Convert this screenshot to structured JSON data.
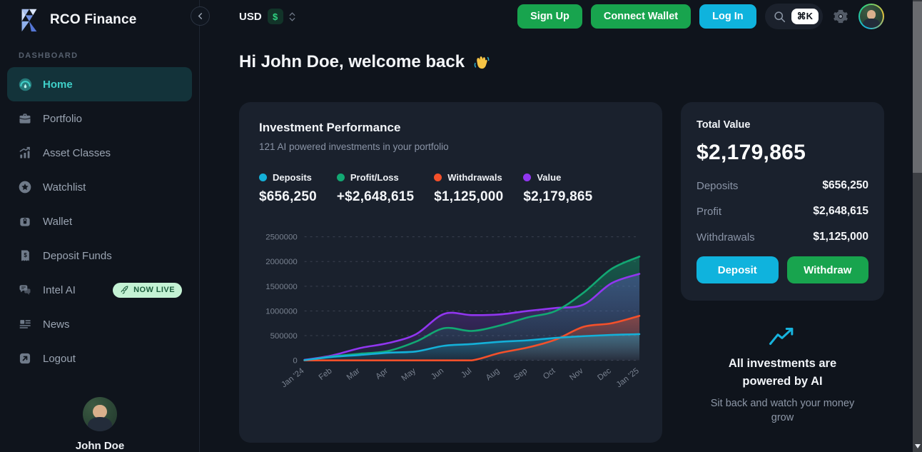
{
  "app": {
    "brand": "RCO Finance"
  },
  "topbar": {
    "currency": {
      "code": "USD",
      "symbol": "$"
    },
    "buttons": {
      "sign_up": "Sign Up",
      "connect_wallet": "Connect Wallet",
      "log_in": "Log In"
    },
    "search_shortcut": "⌘K"
  },
  "sidebar": {
    "section_label": "DASHBOARD",
    "items": [
      {
        "label": "Home",
        "icon": "gauge-icon",
        "active": true
      },
      {
        "label": "Portfolio",
        "icon": "briefcase-icon",
        "active": false
      },
      {
        "label": "Asset Classes",
        "icon": "bar-chart-icon",
        "active": false
      },
      {
        "label": "Watchlist",
        "icon": "star-icon",
        "active": false
      },
      {
        "label": "Wallet",
        "icon": "lock-icon",
        "active": false
      },
      {
        "label": "Deposit Funds",
        "icon": "receipt-dollar-icon",
        "active": false
      },
      {
        "label": "Intel AI",
        "icon": "chat-bubbles-icon",
        "active": false,
        "badge": "NOW LIVE",
        "badge_icon": "rocket-icon"
      },
      {
        "label": "News",
        "icon": "newspaper-icon",
        "active": false
      },
      {
        "label": "Logout",
        "icon": "logout-arrow-icon",
        "active": false
      }
    ],
    "user": {
      "name": "John Doe"
    }
  },
  "main": {
    "greeting": "Hi John Doe, welcome back",
    "performance_card": {
      "title": "Investment Performance",
      "subtitle": "121 AI powered investments in your portfolio",
      "legend": [
        {
          "label": "Deposits",
          "value": "$656,250",
          "color": "#14b0d8"
        },
        {
          "label": "Profit/Loss",
          "value": "+$2,648,615",
          "color": "#12a873"
        },
        {
          "label": "Withdrawals",
          "value": "$1,125,000",
          "color": "#f4502a"
        },
        {
          "label": "Value",
          "value": "$2,179,865",
          "color": "#9136f0"
        }
      ]
    },
    "total_card": {
      "title": "Total Value",
      "total": "$2,179,865",
      "rows": [
        {
          "label": "Deposits",
          "value": "$656,250"
        },
        {
          "label": "Profit",
          "value": "$2,648,615"
        },
        {
          "label": "Withdrawals",
          "value": "$1,125,000"
        }
      ],
      "deposit_button": "Deposit",
      "withdraw_button": "Withdraw"
    },
    "ai_note": {
      "title": "All investments are powered by AI",
      "subtitle": "Sit back and watch your money grow"
    }
  },
  "colors": {
    "accent_teal": "#3fd0c9",
    "button_green": "#18a44e",
    "button_cyan": "#0fb3dd",
    "badge_live_bg": "#c4f2d4",
    "badge_live_text": "#1b5e3c",
    "card_bg": "#1a212d",
    "page_bg": "#0f141c"
  },
  "chart_data": {
    "type": "area",
    "title": "Investment Performance",
    "x": [
      "Jan '24",
      "Feb",
      "Mar",
      "Apr",
      "May",
      "Jun",
      "Jul",
      "Aug",
      "Sep",
      "Oct",
      "Nov",
      "Dec",
      "Jan '25"
    ],
    "series": [
      {
        "name": "Deposits",
        "color": "#14b0d8",
        "values": [
          5000,
          70000,
          110000,
          155000,
          180000,
          295000,
          330000,
          375000,
          405000,
          455000,
          490000,
          515000,
          530000
        ]
      },
      {
        "name": "Profit/Loss",
        "color": "#12a873",
        "values": [
          0,
          80000,
          135000,
          190000,
          380000,
          650000,
          595000,
          705000,
          870000,
          1000000,
          1370000,
          1850000,
          2100000
        ]
      },
      {
        "name": "Withdrawals",
        "color": "#f4502a",
        "values": [
          0,
          0,
          0,
          0,
          0,
          0,
          0,
          150000,
          260000,
          420000,
          680000,
          750000,
          900000
        ]
      },
      {
        "name": "Value",
        "color": "#9136f0",
        "values": [
          10000,
          100000,
          250000,
          350000,
          530000,
          940000,
          915000,
          930000,
          1000000,
          1060000,
          1130000,
          1560000,
          1750000
        ]
      }
    ],
    "ylim": [
      0,
      2500000
    ],
    "yticks": [
      0,
      500000,
      1000000,
      1500000,
      2000000,
      2500000
    ],
    "grid": "horizontal-dashed",
    "legend_position": "above"
  }
}
